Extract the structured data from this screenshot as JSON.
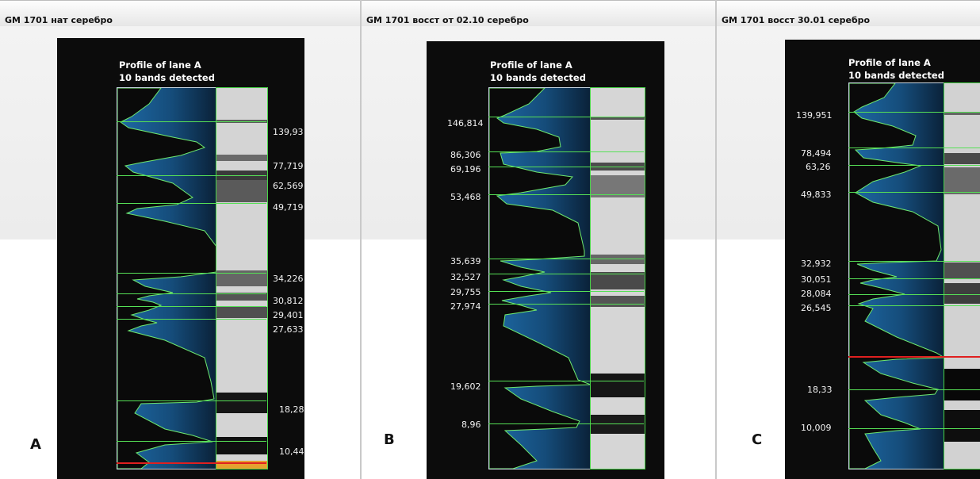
{
  "panels": [
    {
      "title": "GM 1701 нат серебро",
      "profile_title": "Profile of lane A",
      "bands_text": "10 bands detected",
      "letter": "A",
      "markers": [
        "139,93",
        "77,719",
        "62,569",
        "49,719",
        "34,226",
        "30,812",
        "29,401",
        "27,633",
        "18,28",
        "10,44"
      ]
    },
    {
      "title": "GM 1701 восст от 02.10 серебро",
      "profile_title": "Profile of lane A",
      "bands_text": "10 bands detected",
      "letter": "B",
      "markers": [
        "146,814",
        "86,306",
        "69,196",
        "53,468",
        "35,639",
        "32,527",
        "29,755",
        "27,974",
        "19,602",
        "8,96"
      ]
    },
    {
      "title": "GM 1701 восст 30.01 серебро",
      "profile_title": "Profile of lane A",
      "bands_text": "10 bands detected",
      "letter": "C",
      "markers": [
        "139,951",
        "78,494",
        "63,26",
        "49,833",
        "32,932",
        "30,051",
        "28,084",
        "26,545",
        "18,33",
        "10,009"
      ]
    }
  ],
  "colors": {
    "profile_fill": "#1e6aa6",
    "band_line": "#56e056",
    "cutoff_line": "#e02020",
    "background": "#0c0c0c"
  }
}
